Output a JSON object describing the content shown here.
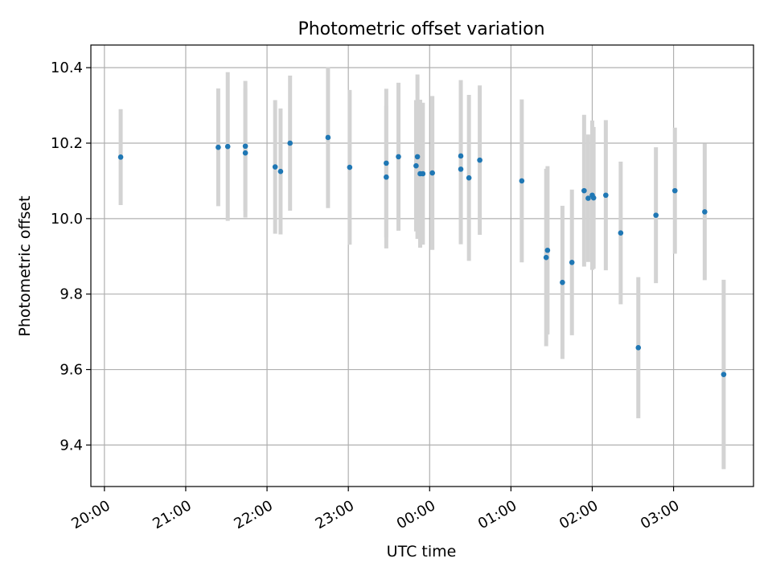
{
  "chart_data": {
    "type": "scatter",
    "title": "Photometric offset variation",
    "xlabel": "UTC time",
    "ylabel": "Photometric offset",
    "x_axis_type": "time",
    "xlim": [
      "19:50",
      "03:59"
    ],
    "ylim": [
      9.29,
      10.46
    ],
    "x_ticks": [
      "20:00",
      "21:00",
      "22:00",
      "23:00",
      "00:00",
      "01:00",
      "02:00",
      "03:00"
    ],
    "y_ticks": [
      9.4,
      9.6,
      9.8,
      10.0,
      10.2,
      10.4
    ],
    "grid": true,
    "marker_color": "#1f77b4",
    "errorbar_color": "#d3d3d3",
    "points": [
      {
        "t": "20:12",
        "y": 10.163,
        "err": 0.127
      },
      {
        "t": "21:24",
        "y": 10.189,
        "err": 0.156
      },
      {
        "t": "21:31",
        "y": 10.191,
        "err": 0.197
      },
      {
        "t": "21:44",
        "y": 10.192,
        "err": 0.173
      },
      {
        "t": "21:44",
        "y": 10.174,
        "err": 0.171
      },
      {
        "t": "22:06",
        "y": 10.137,
        "err": 0.177
      },
      {
        "t": "22:10",
        "y": 10.125,
        "err": 0.167
      },
      {
        "t": "22:17",
        "y": 10.2,
        "err": 0.179
      },
      {
        "t": "22:45",
        "y": 10.215,
        "err": 0.187
      },
      {
        "t": "23:01",
        "y": 10.136,
        "err": 0.205
      },
      {
        "t": "23:28",
        "y": 10.147,
        "err": 0.197
      },
      {
        "t": "23:28",
        "y": 10.11,
        "err": 0.189
      },
      {
        "t": "23:37",
        "y": 10.164,
        "err": 0.196
      },
      {
        "t": "23:50",
        "y": 10.14,
        "err": 0.174
      },
      {
        "t": "23:51",
        "y": 10.164,
        "err": 0.218
      },
      {
        "t": "23:53",
        "y": 10.119,
        "err": 0.196
      },
      {
        "t": "23:55",
        "y": 10.119,
        "err": 0.188
      },
      {
        "t": "00:02",
        "y": 10.121,
        "err": 0.204
      },
      {
        "t": "00:23",
        "y": 10.131,
        "err": 0.199
      },
      {
        "t": "00:23",
        "y": 10.166,
        "err": 0.201
      },
      {
        "t": "00:29",
        "y": 10.108,
        "err": 0.22
      },
      {
        "t": "00:37",
        "y": 10.155,
        "err": 0.198
      },
      {
        "t": "01:08",
        "y": 10.1,
        "err": 0.216
      },
      {
        "t": "01:26",
        "y": 9.897,
        "err": 0.235
      },
      {
        "t": "01:27",
        "y": 9.916,
        "err": 0.223
      },
      {
        "t": "01:38",
        "y": 9.831,
        "err": 0.203
      },
      {
        "t": "01:45",
        "y": 9.884,
        "err": 0.193
      },
      {
        "t": "01:54",
        "y": 10.074,
        "err": 0.201
      },
      {
        "t": "01:57",
        "y": 10.054,
        "err": 0.169
      },
      {
        "t": "02:00",
        "y": 10.062,
        "err": 0.198
      },
      {
        "t": "02:01",
        "y": 10.055,
        "err": 0.188
      },
      {
        "t": "02:10",
        "y": 10.062,
        "err": 0.199
      },
      {
        "t": "02:21",
        "y": 9.962,
        "err": 0.189
      },
      {
        "t": "02:34",
        "y": 9.658,
        "err": 0.187
      },
      {
        "t": "02:47",
        "y": 10.009,
        "err": 0.18
      },
      {
        "t": "03:01",
        "y": 10.074,
        "err": 0.167
      },
      {
        "t": "03:23",
        "y": 10.018,
        "err": 0.181
      },
      {
        "t": "03:37",
        "y": 9.587,
        "err": 0.251
      }
    ]
  }
}
